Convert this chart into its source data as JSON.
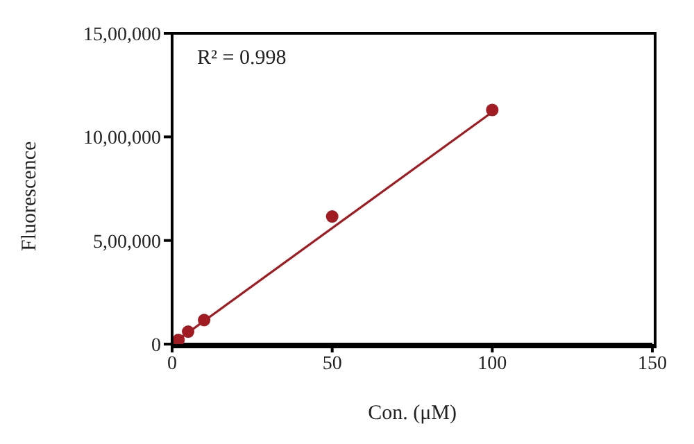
{
  "chart_data": {
    "type": "scatter",
    "xlabel": "Con. (μM)",
    "ylabel": "Fluorescence",
    "annotations": [
      "R² = 0.998"
    ],
    "series": [
      {
        "type": "scatter",
        "color": "#a01c22",
        "x": [
          2,
          5,
          10,
          50,
          100
        ],
        "values": [
          20000,
          60000,
          116000,
          616000,
          1130000
        ],
        "marker": "circle"
      },
      {
        "type": "line",
        "color": "#a01c22",
        "x": [
          0,
          100
        ],
        "values": [
          0,
          1120000
        ],
        "marker": "none",
        "line_style": "solid"
      }
    ],
    "xlim": [
      0,
      150
    ],
    "xticks": [
      0,
      50,
      100,
      150
    ],
    "ylim": [
      0,
      1500000
    ],
    "yticks": [
      {
        "value": 0,
        "label": "0"
      },
      {
        "value": 500000,
        "label": "5,00,000"
      },
      {
        "value": 1000000,
        "label": "10,00,000"
      },
      {
        "value": 1500000,
        "label": "15,00,000"
      }
    ],
    "grid": false,
    "legend": false
  }
}
